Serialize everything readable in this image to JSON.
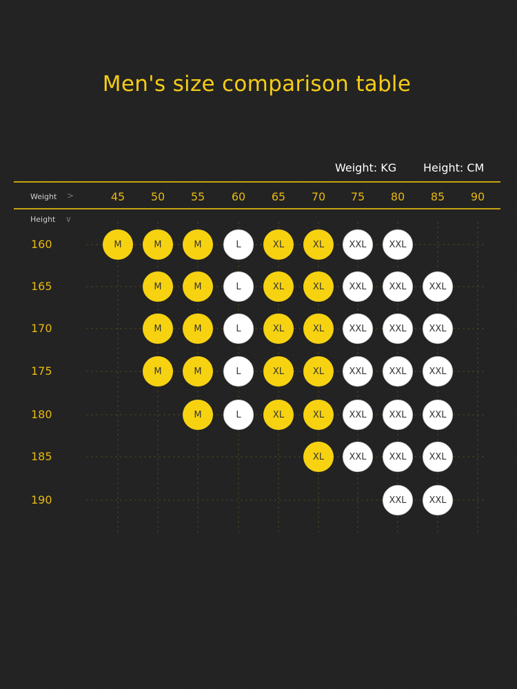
{
  "title": "Men's size comparison table",
  "units": {
    "weight": "Weight: KG",
    "height": "Height: CM"
  },
  "labels": {
    "weight": "Weight",
    "height": "Height"
  },
  "icons": {
    "weight_arrow": "chevron-right-icon",
    "height_arrow": "chevron-down-icon"
  },
  "colors": {
    "background": "#222222",
    "accent": "#f6d211",
    "M": "#f6d211",
    "XL": "#f6d211",
    "L": "#ffffff",
    "XXL": "#ffffff"
  },
  "weights": [
    "45",
    "50",
    "55",
    "60",
    "65",
    "70",
    "75",
    "80",
    "85",
    "90"
  ],
  "heights": [
    "160",
    "165",
    "170",
    "175",
    "180",
    "185",
    "190"
  ],
  "rows": [
    [
      "M",
      "M",
      "M",
      "L",
      "XL",
      "XL",
      "XXL",
      "XXL",
      "",
      ""
    ],
    [
      "",
      "M",
      "M",
      "L",
      "XL",
      "XL",
      "XXL",
      "XXL",
      "XXL",
      ""
    ],
    [
      "",
      "M",
      "M",
      "L",
      "XL",
      "XL",
      "XXL",
      "XXL",
      "XXL",
      ""
    ],
    [
      "",
      "M",
      "M",
      "L",
      "XL",
      "XL",
      "XXL",
      "XXL",
      "XXL",
      ""
    ],
    [
      "",
      "",
      "M",
      "L",
      "XL",
      "XL",
      "XXL",
      "XXL",
      "XXL",
      ""
    ],
    [
      "",
      "",
      "",
      "",
      "",
      "XL",
      "XXL",
      "XXL",
      "XXL",
      ""
    ],
    [
      "",
      "",
      "",
      "",
      "",
      "",
      "",
      "XXL",
      "XXL",
      ""
    ]
  ]
}
